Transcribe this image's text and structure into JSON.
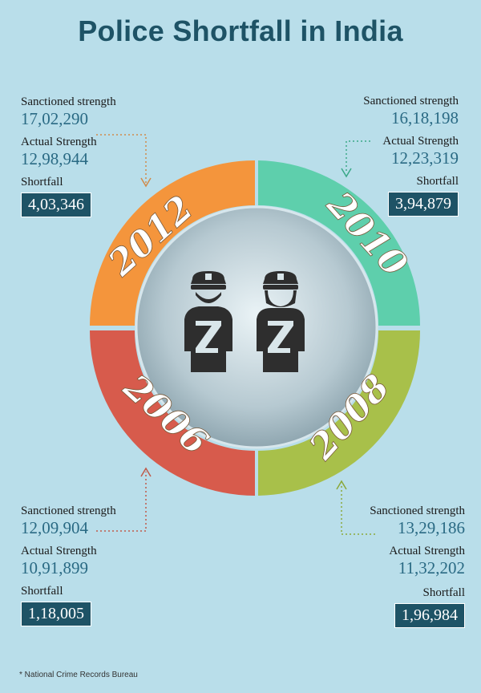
{
  "title": "Police Shortfall in India",
  "footnote": "* National Crime Records Bureau",
  "labels": {
    "sanctioned": "Sanctioned strength",
    "actual": "Actual Strength",
    "shortfall": "Shortfall"
  },
  "segments": {
    "y2012": {
      "year": "2012",
      "color": "#f4953c",
      "sanctioned": "17,02,290",
      "actual": "12,98,944",
      "shortfall": "4,03,346"
    },
    "y2010": {
      "year": "2010",
      "color": "#5ecfac",
      "sanctioned": "16,18,198",
      "actual": "12,23,319",
      "shortfall": "3,94,879"
    },
    "y2006": {
      "year": "2006",
      "color": "#d75b4c",
      "sanctioned": "12,09,904",
      "actual": "10,91,899",
      "shortfall": "1,18,005"
    },
    "y2008": {
      "year": "2008",
      "color": "#a8c04a",
      "sanctioned": "13,29,186",
      "actual": "11,32,202",
      "shortfall": "1,96,984"
    }
  },
  "icons": [
    "police-officer-male-icon",
    "police-officer-female-icon"
  ]
}
